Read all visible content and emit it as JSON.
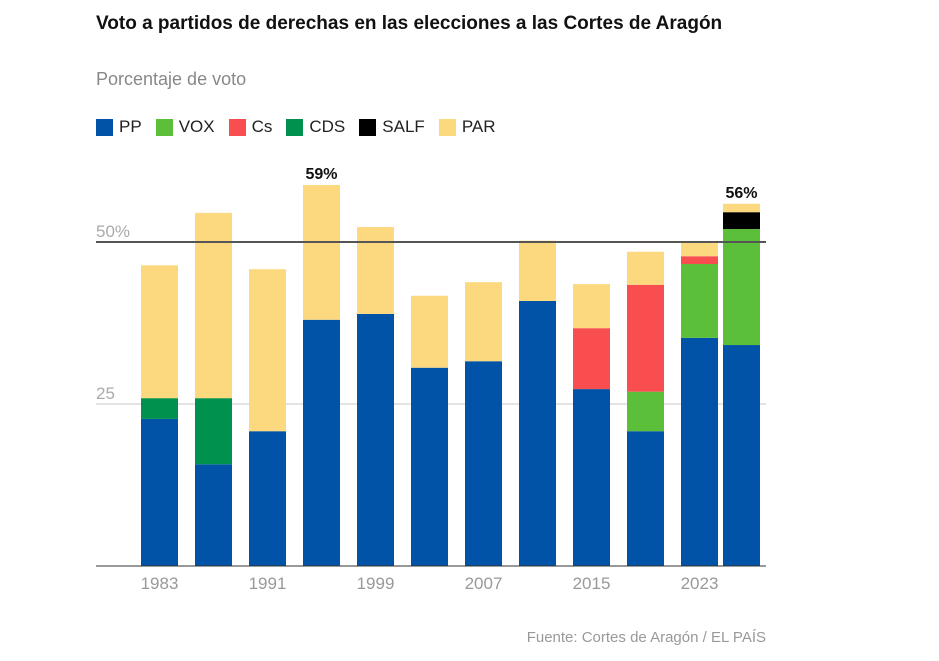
{
  "title": "Voto a partidos de derechas en las elecciones a las Cortes de Aragón",
  "subtitle": "Porcentaje de voto",
  "source": "Fuente: Cortes de Aragón / EL PAÍS",
  "chart_data": {
    "type": "bar",
    "stacked": true,
    "categories": [
      "1983",
      "1987",
      "1991",
      "1995",
      "1999",
      "2003",
      "2007",
      "2011",
      "2015",
      "2019",
      "2023",
      ""
    ],
    "x_tick_labels": [
      "1983",
      "1991",
      "1999",
      "2007",
      "2015",
      "2023"
    ],
    "y_tick_labels": [
      "25",
      "50%"
    ],
    "ylim": [
      0,
      60
    ],
    "reference_line": 50,
    "legend_position": "top-left",
    "series": [
      {
        "name": "PP",
        "color": "#0053a6",
        "values": [
          22.7,
          15.7,
          20.8,
          38.0,
          38.9,
          30.6,
          31.6,
          40.9,
          27.3,
          20.8,
          35.2,
          34.1
        ]
      },
      {
        "name": "VOX",
        "color": "#5bbf3a",
        "values": [
          0,
          0,
          0,
          0,
          0,
          0,
          0,
          0,
          0,
          6.1,
          11.4,
          17.9
        ]
      },
      {
        "name": "Cs",
        "color": "#f94e50",
        "values": [
          0,
          0,
          0,
          0,
          0,
          0,
          0,
          0,
          9.4,
          16.5,
          1.2,
          0
        ]
      },
      {
        "name": "CDS",
        "color": "#00914f",
        "values": [
          3.2,
          10.2,
          0,
          0,
          0,
          0,
          0,
          0,
          0,
          0,
          0,
          0
        ]
      },
      {
        "name": "SALF",
        "color": "#000000",
        "values": [
          0,
          0,
          0,
          0,
          0,
          0,
          0,
          0,
          0,
          0,
          0,
          2.6
        ]
      },
      {
        "name": "PAR",
        "color": "#fcd97e",
        "values": [
          20.5,
          28.6,
          25.0,
          20.8,
          13.4,
          11.1,
          12.2,
          9.3,
          6.8,
          5.1,
          2.2,
          1.3
        ]
      }
    ],
    "annotations": [
      {
        "category": "1995",
        "text": "59%"
      },
      {
        "category": "",
        "text": "56%"
      }
    ]
  }
}
